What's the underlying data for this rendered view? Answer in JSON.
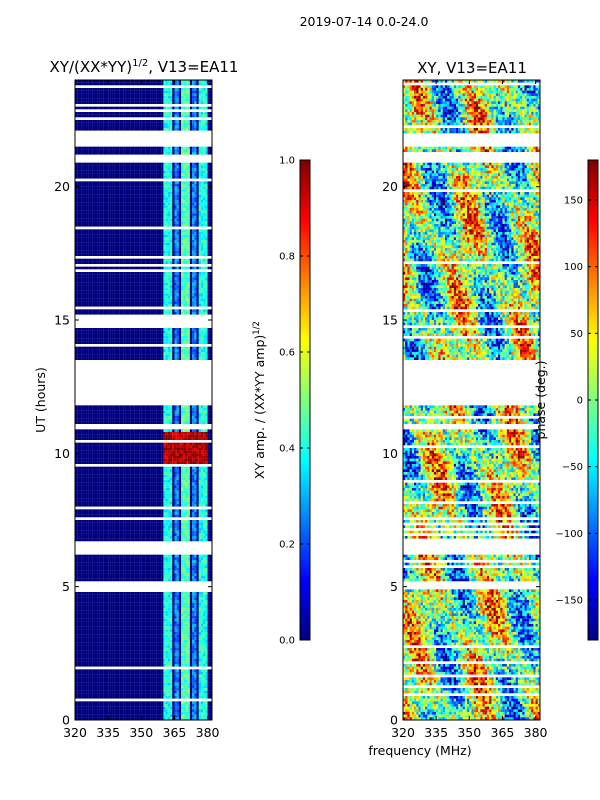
{
  "suptitle": "2019-07-14 0.0-24.0",
  "figure_xlabel": "frequency (MHz)",
  "colormap": [
    "#00007f",
    "#0000ff",
    "#007fff",
    "#00ffff",
    "#7fff7f",
    "#ffff00",
    "#ff7f00",
    "#ff0000",
    "#7f0000"
  ],
  "chart_data": [
    {
      "type": "heatmap",
      "title_main": "XY/(XX*YY)",
      "title_sup": "1/2",
      "title_rest": ", V13=EA11",
      "xlabel": "",
      "ylabel": "UT (hours)",
      "xlim": [
        320,
        382
      ],
      "ylim": [
        0,
        24
      ],
      "x_ticks": [
        320,
        335,
        350,
        365,
        380
      ],
      "y_ticks": [
        0,
        5,
        10,
        15,
        20
      ],
      "colorbar": {
        "label_main": "XY amp. / (XX*YY amp)",
        "label_sup": "1/2",
        "range": [
          0.0,
          1.0
        ],
        "ticks": [
          "0.0",
          "0.2",
          "0.4",
          "0.6",
          "0.8",
          "1.0"
        ]
      },
      "features": [
        {
          "name": "background",
          "x_range": [
            320,
            382
          ],
          "value": 0.0
        },
        {
          "name": "band-1",
          "x_range": [
            360,
            364
          ],
          "value": 0.4
        },
        {
          "name": "band-2",
          "x_range": [
            365,
            367
          ],
          "value": 0.25
        },
        {
          "name": "band-3",
          "x_range": [
            368,
            372
          ],
          "value": 0.45
        },
        {
          "name": "band-4",
          "x_range": [
            373,
            375
          ],
          "value": 0.25
        },
        {
          "name": "band-5",
          "x_range": [
            376,
            380
          ],
          "value": 0.4
        },
        {
          "name": "rfi-peak",
          "ut_range": [
            9.6,
            10.8
          ],
          "x_range": [
            360,
            380
          ],
          "value": 0.95
        }
      ],
      "flagged_ut_ranges": [
        [
          11.8,
          13.5
        ],
        [
          6.2,
          6.7
        ],
        [
          4.9,
          5.2
        ],
        [
          21.5,
          22.0
        ],
        [
          20.9,
          21.2
        ],
        [
          7.5,
          7.6
        ],
        [
          10.9,
          11.1
        ]
      ]
    },
    {
      "type": "heatmap",
      "title": "XY, V13=EA11",
      "xlabel": "",
      "ylabel": "",
      "xlim": [
        320,
        382
      ],
      "ylim": [
        0,
        24
      ],
      "x_ticks": [
        320,
        335,
        350,
        365,
        380
      ],
      "y_ticks": [
        0,
        5,
        10,
        15,
        20
      ],
      "colorbar": {
        "label": "phase (deg.)",
        "range": [
          -180,
          180
        ],
        "ticks": [
          "150",
          "100",
          "50",
          "0",
          "−50",
          "−100",
          "−150"
        ]
      },
      "flagged_ut_ranges": [
        [
          11.8,
          13.5
        ],
        [
          6.2,
          6.7
        ],
        [
          4.9,
          5.2
        ],
        [
          21.5,
          22.0
        ],
        [
          20.9,
          21.2
        ],
        [
          7.5,
          7.6
        ],
        [
          10.9,
          11.1
        ]
      ]
    }
  ]
}
